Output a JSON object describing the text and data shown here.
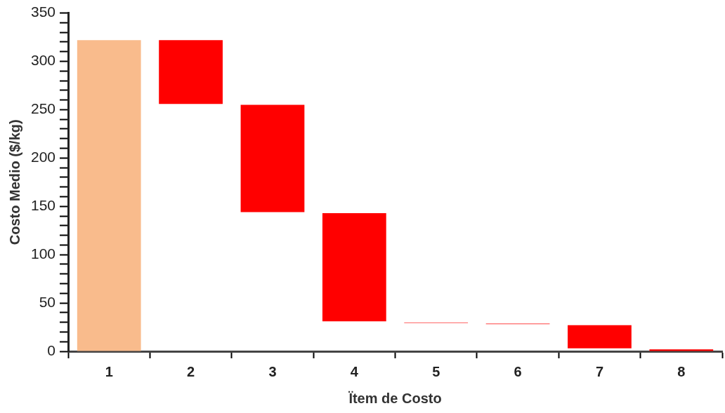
{
  "chart_data": {
    "type": "bar",
    "xlabel": "Ïtem de Costo",
    "ylabel": "Costo Medio ($/kg)",
    "categories": [
      "1",
      "2",
      "3",
      "4",
      "5",
      "6",
      "7",
      "8"
    ],
    "values": [
      322,
      66,
      111,
      112,
      1,
      1,
      24,
      2
    ],
    "base": [
      0,
      256,
      144,
      31,
      29,
      28,
      3,
      0
    ],
    "colors": [
      "#f9bb8c",
      "#ff0000",
      "#ff0000",
      "#ff0000",
      "#ff8080",
      "#ff8080",
      "#ff0000",
      "#ff0000"
    ],
    "ylim": [
      0,
      350
    ],
    "yticks": [
      0,
      {
        "value": 10,
        "label": null
      },
      {
        "value": 20,
        "label": null
      },
      {
        "value": 30,
        "label": null
      },
      {
        "value": 40,
        "label": null
      },
      50,
      {
        "value": 60,
        "label": null
      },
      {
        "value": 70,
        "label": null
      },
      {
        "value": 80,
        "label": null
      },
      {
        "value": 90,
        "label": null
      },
      100,
      {
        "value": 110,
        "label": null
      },
      {
        "value": 120,
        "label": null
      },
      {
        "value": 130,
        "label": null
      },
      {
        "value": 140,
        "label": null
      },
      150,
      {
        "value": 160,
        "label": null
      },
      {
        "value": 170,
        "label": null
      },
      {
        "value": 180,
        "label": null
      },
      {
        "value": 190,
        "label": null
      },
      200,
      {
        "value": 210,
        "label": null
      },
      {
        "value": 220,
        "label": null
      },
      {
        "value": 230,
        "label": null
      },
      {
        "value": 240,
        "label": null
      },
      250,
      {
        "value": 260,
        "label": null
      },
      {
        "value": 270,
        "label": null
      },
      {
        "value": 280,
        "label": null
      },
      {
        "value": 290,
        "label": null
      },
      300,
      {
        "value": 310,
        "label": null
      },
      {
        "value": 320,
        "label": null
      },
      {
        "value": 330,
        "label": null
      },
      {
        "value": 340,
        "label": null
      },
      350
    ],
    "grid": false,
    "legend": false
  }
}
